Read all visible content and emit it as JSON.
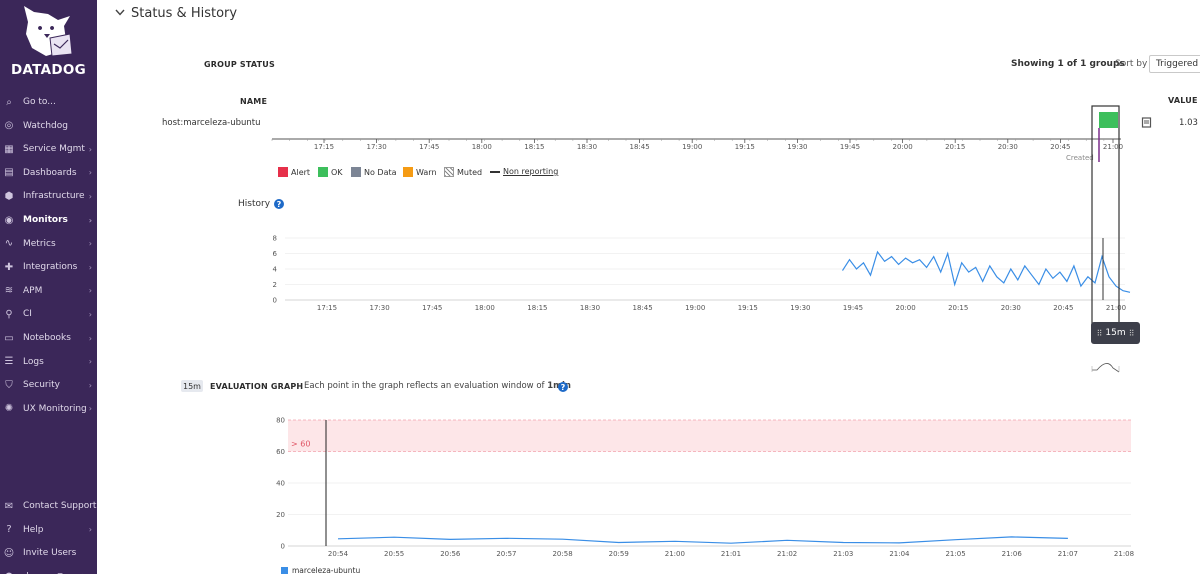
{
  "sidebar": {
    "brand": "DATADOG",
    "items": [
      {
        "label": "Go to...",
        "icon": "search-icon",
        "chevron": false
      },
      {
        "label": "Watchdog",
        "icon": "binoculars-icon",
        "chevron": false
      },
      {
        "label": "Service Mgmt",
        "icon": "service-icon",
        "chevron": true
      },
      {
        "label": "Dashboards",
        "icon": "dashboard-icon",
        "chevron": true
      },
      {
        "label": "Infrastructure",
        "icon": "infrastructure-icon",
        "chevron": true
      },
      {
        "label": "Monitors",
        "icon": "monitor-icon",
        "chevron": true,
        "active": true
      },
      {
        "label": "Metrics",
        "icon": "metrics-icon",
        "chevron": true
      },
      {
        "label": "Integrations",
        "icon": "puzzle-icon",
        "chevron": true
      },
      {
        "label": "APM",
        "icon": "apm-icon",
        "chevron": true
      },
      {
        "label": "CI",
        "icon": "ci-icon",
        "chevron": true
      },
      {
        "label": "Notebooks",
        "icon": "notebook-icon",
        "chevron": true
      },
      {
        "label": "Logs",
        "icon": "logs-icon",
        "chevron": true
      },
      {
        "label": "Security",
        "icon": "shield-icon",
        "chevron": true
      },
      {
        "label": "UX Monitoring",
        "icon": "ux-icon",
        "chevron": true
      }
    ],
    "bottom_items": [
      {
        "label": "Contact Support",
        "icon": "chat-icon",
        "chevron": false
      },
      {
        "label": "Help",
        "icon": "help-icon",
        "chevron": true
      },
      {
        "label": "Invite Users",
        "icon": "invite-icon",
        "chevron": false
      },
      {
        "label": "devops@marc",
        "icon": "avatar",
        "chevron": false
      }
    ]
  },
  "section": {
    "title": "Status & History"
  },
  "group_status": {
    "header": "GROUP STATUS",
    "showing": "Showing 1 of 1 groups",
    "sort_label": "Sort by",
    "sort_value": "Triggered",
    "name_header": "NAME",
    "value_header": "VALUE",
    "row": {
      "name": "host:marceleza-ubuntu",
      "value": "1.03",
      "status": "OK",
      "created_label": "Created"
    }
  },
  "timeline_ticks": [
    "17:15",
    "17:30",
    "17:45",
    "18:00",
    "18:15",
    "18:30",
    "18:45",
    "19:00",
    "19:15",
    "19:30",
    "19:45",
    "20:00",
    "20:15",
    "20:30",
    "20:45",
    "21:00"
  ],
  "legend": [
    {
      "label": "Alert",
      "color": "#e6304a"
    },
    {
      "label": "OK",
      "color": "#3dbf5c"
    },
    {
      "label": "No Data",
      "color": "#7c8595"
    },
    {
      "label": "Warn",
      "color": "#f59b14"
    },
    {
      "label": "Muted",
      "color": "hatched"
    },
    {
      "label": "Non reporting",
      "color": "dashed"
    }
  ],
  "history": {
    "label": "History",
    "window": "15m"
  },
  "evaluation": {
    "badge": "15m",
    "title": "EVALUATION GRAPH",
    "desc_prefix": "Each point in the graph reflects an evaluation window of",
    "desc_value": "1min",
    "threshold_label": "> 60",
    "series_name": "marceleza-ubuntu"
  },
  "chart_data": [
    {
      "type": "line",
      "title": "History",
      "x_ticks": [
        "17:15",
        "17:30",
        "17:45",
        "18:00",
        "18:15",
        "18:30",
        "18:45",
        "19:00",
        "19:15",
        "19:30",
        "19:45",
        "20:00",
        "20:15",
        "20:30",
        "20:45",
        "21:00"
      ],
      "ylim": [
        0,
        8
      ],
      "y_ticks": [
        0,
        2,
        4,
        6,
        8
      ],
      "series": [
        {
          "x": [
            "19:42",
            "19:44",
            "19:46",
            "19:48",
            "19:50",
            "19:52",
            "19:54",
            "19:56",
            "19:58",
            "20:00",
            "20:02",
            "20:04",
            "20:06",
            "20:08",
            "20:10",
            "20:12",
            "20:14",
            "20:16",
            "20:18",
            "20:20",
            "20:22",
            "20:24",
            "20:26",
            "20:28",
            "20:30",
            "20:32",
            "20:34",
            "20:36",
            "20:38",
            "20:40",
            "20:42",
            "20:44",
            "20:46",
            "20:48",
            "20:50",
            "20:52",
            "20:54",
            "20:56",
            "20:58",
            "21:00",
            "21:02",
            "21:04"
          ],
          "values": [
            3.8,
            5.2,
            4.0,
            4.8,
            3.2,
            6.2,
            5.0,
            5.6,
            4.6,
            5.4,
            4.8,
            5.2,
            4.2,
            5.6,
            3.6,
            6.0,
            2.0,
            4.8,
            3.6,
            4.2,
            2.4,
            4.4,
            3.0,
            2.2,
            4.0,
            2.6,
            4.4,
            3.2,
            2.0,
            4.0,
            2.8,
            3.6,
            2.4,
            4.4,
            1.8,
            3.0,
            2.2,
            5.6,
            3.0,
            1.8,
            1.2,
            1.0
          ]
        }
      ]
    },
    {
      "type": "line",
      "title": "EVALUATION GRAPH",
      "x_ticks": [
        "20:54",
        "20:55",
        "20:56",
        "20:57",
        "20:58",
        "20:59",
        "21:00",
        "21:01",
        "21:02",
        "21:03",
        "21:04",
        "21:05",
        "21:06",
        "21:07",
        "21:08"
      ],
      "ylim": [
        0,
        80
      ],
      "y_ticks": [
        0,
        20,
        40,
        60,
        80
      ],
      "threshold": {
        "label": "> 60",
        "value": 60
      },
      "series": [
        {
          "name": "marceleza-ubuntu",
          "x": [
            "20:54",
            "20:55",
            "20:56",
            "20:57",
            "20:58",
            "20:59",
            "21:00",
            "21:01",
            "21:02",
            "21:03",
            "21:04",
            "21:05",
            "21:06",
            "21:07"
          ],
          "values": [
            4.6,
            5.6,
            4.2,
            4.9,
            4.3,
            2.2,
            3.0,
            1.8,
            3.6,
            2.2,
            2.0,
            4.0,
            5.8,
            4.8
          ]
        }
      ]
    }
  ]
}
